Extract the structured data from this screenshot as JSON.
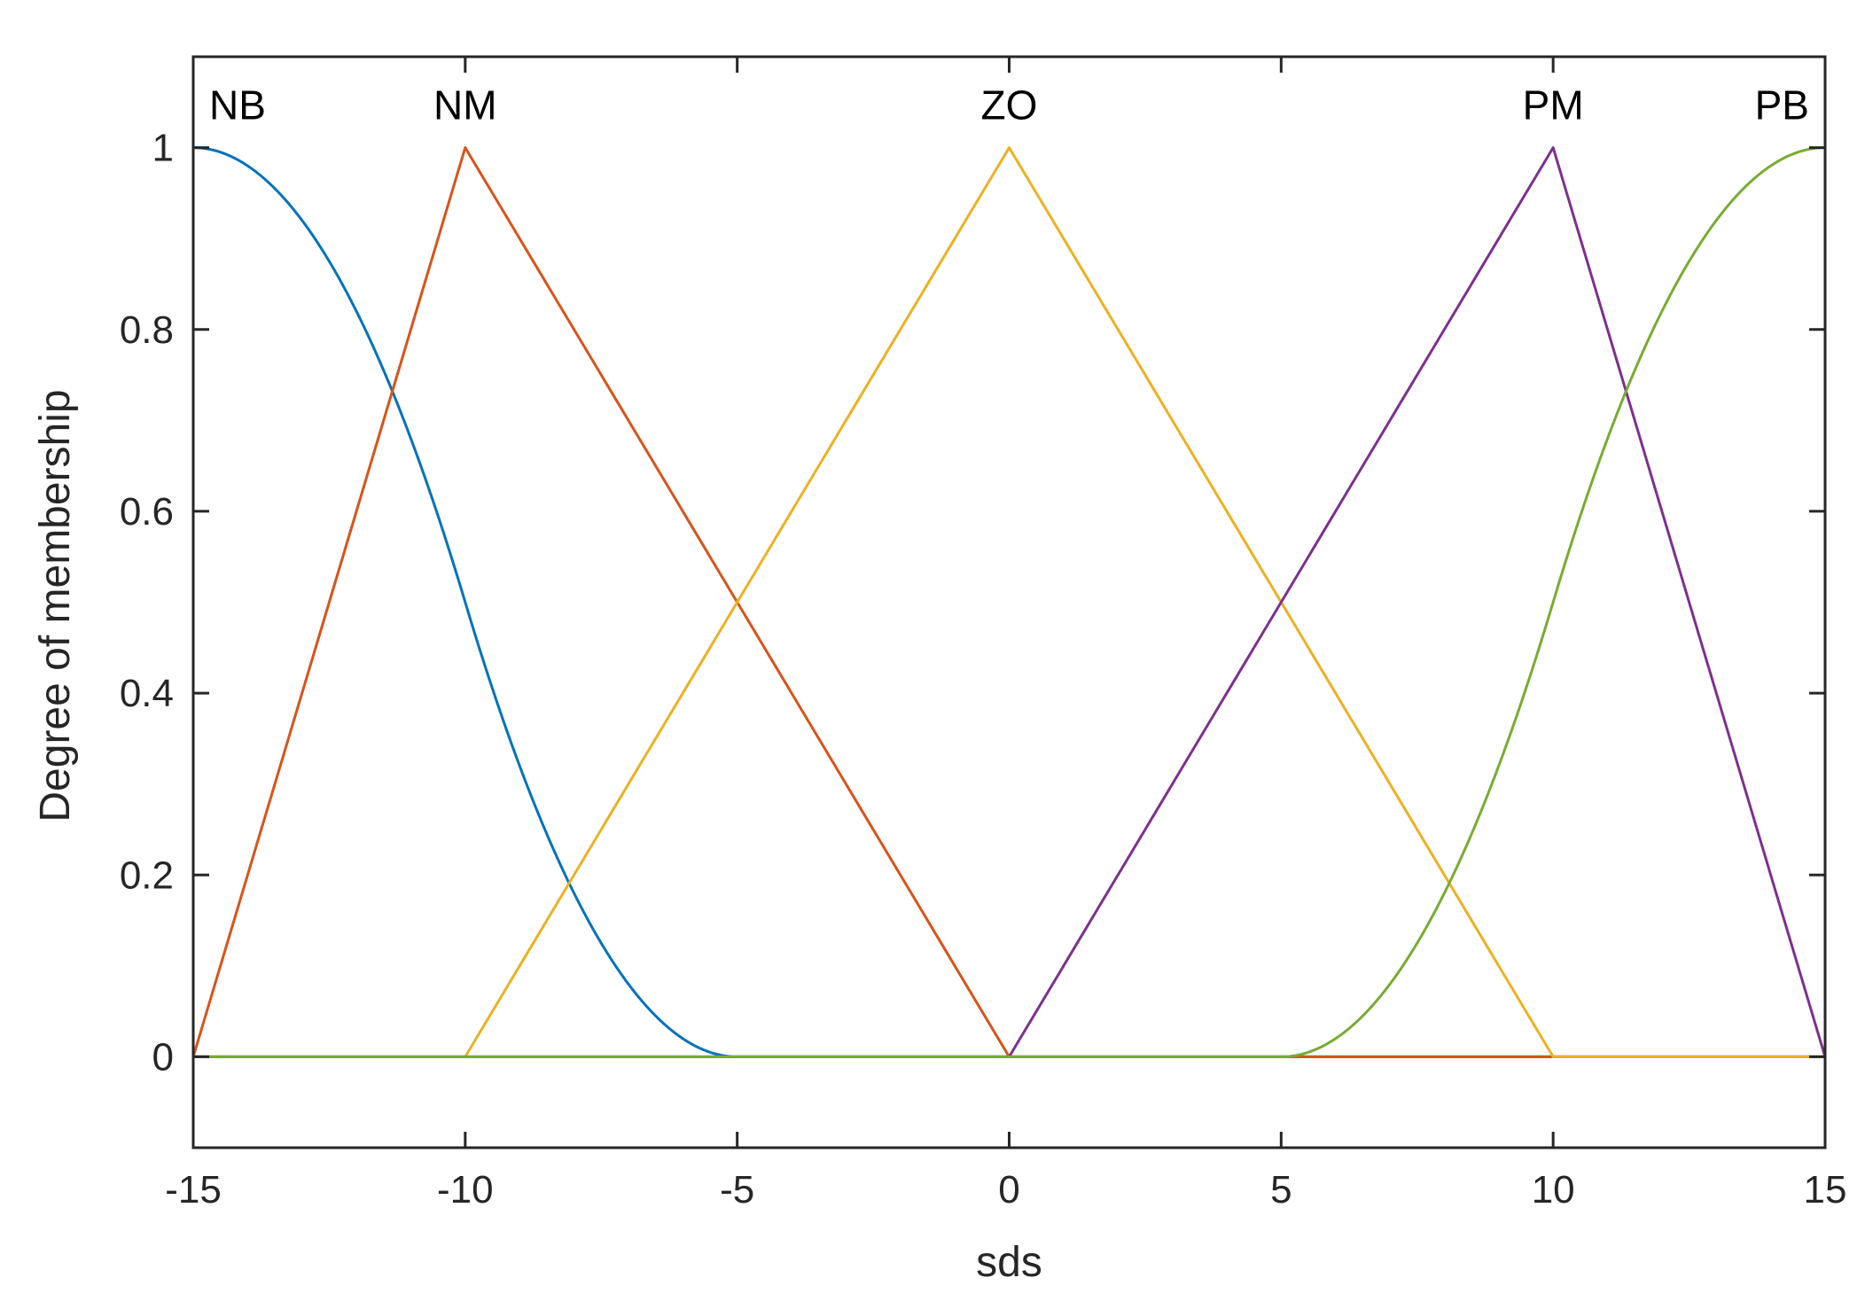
{
  "chart_data": {
    "type": "line",
    "xlabel": "sds",
    "ylabel": "Degree of membership",
    "xlim": [
      -15,
      15
    ],
    "ylim": [
      -0.1,
      1.1
    ],
    "xticks": [
      -15,
      -10,
      -5,
      0,
      5,
      10,
      15
    ],
    "xtick_labels": [
      "-15",
      "-10",
      "-5",
      "0",
      "5",
      "10",
      "15"
    ],
    "yticks": [
      0,
      0.2,
      0.4,
      0.6,
      0.8,
      1
    ],
    "ytick_labels": [
      "0",
      "0.2",
      "0.4",
      "0.6",
      "0.8",
      "1"
    ],
    "grid": false,
    "series": [
      {
        "name": "NB",
        "shape": "zmf",
        "params": [
          -15,
          -5
        ],
        "color": "#0072BD"
      },
      {
        "name": "NM",
        "shape": "trimf",
        "params": [
          -15,
          -10,
          0
        ],
        "color": "#D95319"
      },
      {
        "name": "ZO",
        "shape": "trimf",
        "params": [
          -10,
          0,
          10
        ],
        "color": "#EDB120"
      },
      {
        "name": "PM",
        "shape": "trimf",
        "params": [
          0,
          10,
          15
        ],
        "color": "#7E2F8E"
      },
      {
        "name": "PB",
        "shape": "smf",
        "params": [
          5,
          15
        ],
        "color": "#77AC30"
      }
    ]
  }
}
